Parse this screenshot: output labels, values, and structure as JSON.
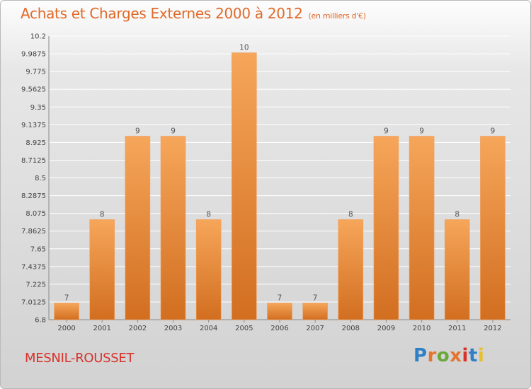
{
  "title": "Achats et Charges Externes 2000 à 2012",
  "subtitle": "(en milliers d'€)",
  "commune": "MESNIL-ROUSSET",
  "logo": {
    "text": "Proxiti",
    "letter_colors": [
      "#2f7fc6",
      "#e8742c",
      "#6aa83a",
      "#e8742c",
      "#d8322a",
      "#2f7fc6",
      "#e8c02a"
    ]
  },
  "colors": {
    "bar_top": "#f6a65a",
    "bar_bottom": "#d26e20",
    "grid": "#ffffff",
    "title": "#e06a2a",
    "commune": "#d8322a"
  },
  "chart_data": {
    "type": "bar",
    "categories": [
      "2000",
      "2001",
      "2002",
      "2003",
      "2004",
      "2005",
      "2006",
      "2007",
      "2008",
      "2009",
      "2010",
      "2011",
      "2012"
    ],
    "values": [
      7,
      8,
      9,
      9,
      8,
      10,
      7,
      7,
      8,
      9,
      9,
      8,
      9
    ],
    "labels": [
      "7",
      "8",
      "9",
      "9",
      "8",
      "10",
      "7",
      "7",
      "8",
      "9",
      "9",
      "8",
      "9"
    ],
    "ylim": [
      6.8,
      10.2
    ],
    "yticks": [
      6.8,
      7.0125,
      7.225,
      7.4375,
      7.65,
      7.8625,
      8.075,
      8.2875,
      8.5,
      8.7125,
      8.925,
      9.1375,
      9.35,
      9.5625,
      9.775,
      9.9875,
      10.2
    ],
    "ytick_labels": [
      "6.8",
      "7.0125",
      "7.225",
      "7.4375",
      "7.65",
      "7.8625",
      "8.075",
      "8.2875",
      "8.5",
      "8.7125",
      "8.925",
      "9.1375",
      "9.35",
      "9.5625",
      "9.775",
      "9.9875",
      "10.2"
    ],
    "grid": true,
    "legend": "none"
  }
}
